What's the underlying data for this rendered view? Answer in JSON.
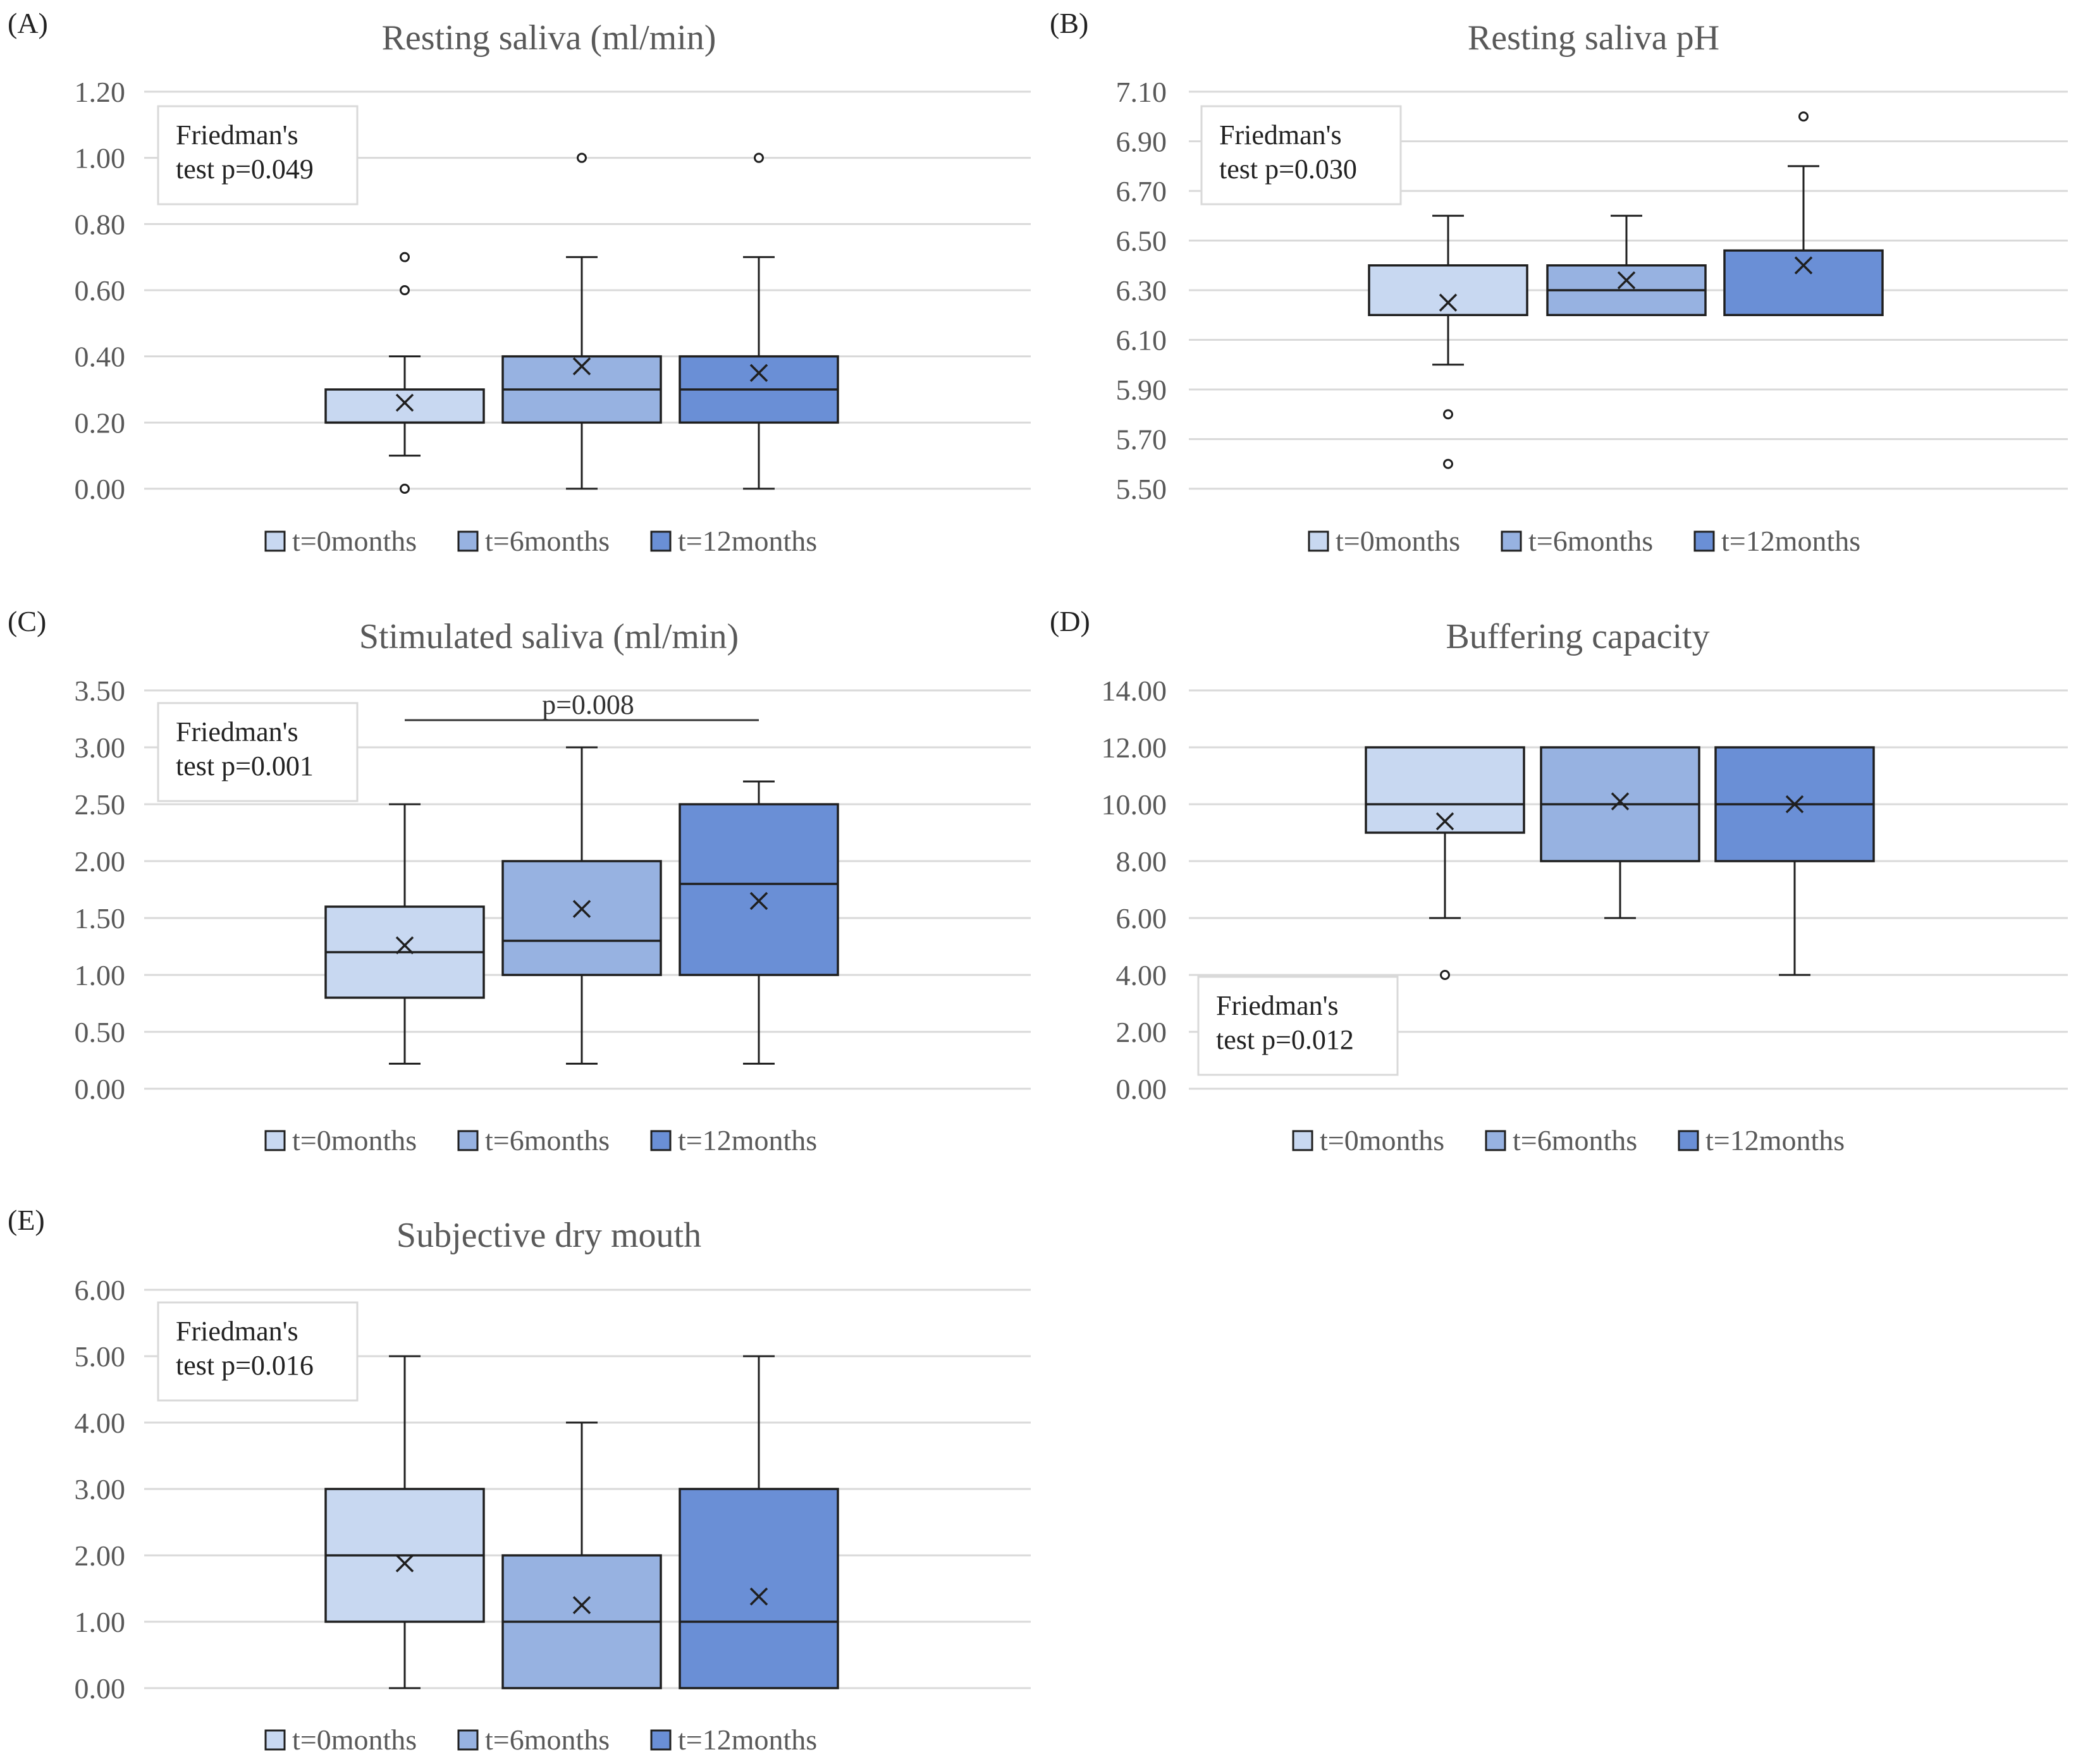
{
  "series_colors": [
    "#c8d8f1",
    "#97b2e1",
    "#6a8fd6"
  ],
  "chart_data": [
    {
      "panel": "(A)",
      "type": "box",
      "title": "Resting saliva (ml/min)",
      "ylim": [
        0,
        1.2
      ],
      "yticks": [
        "0.00",
        "0.20",
        "0.40",
        "0.60",
        "0.80",
        "1.00",
        "1.20"
      ],
      "annotation": [
        "Friedman's",
        "test p=0.049"
      ],
      "annotation_position": "top-left",
      "legend": [
        "t=0months",
        "t=6months",
        "t=12months"
      ],
      "series": [
        {
          "name": "t=0months",
          "min": 0.1,
          "q1": 0.2,
          "median": 0.2,
          "q3": 0.3,
          "max": 0.4,
          "mean": 0.26,
          "outliers": [
            0.0,
            0.6,
            0.7
          ]
        },
        {
          "name": "t=6months",
          "min": 0.0,
          "q1": 0.2,
          "median": 0.3,
          "q3": 0.4,
          "max": 0.7,
          "mean": 0.37,
          "outliers": [
            1.0
          ]
        },
        {
          "name": "t=12months",
          "min": 0.0,
          "q1": 0.2,
          "median": 0.3,
          "q3": 0.4,
          "max": 0.7,
          "mean": 0.35,
          "outliers": [
            1.0
          ]
        }
      ]
    },
    {
      "panel": "(B)",
      "type": "box",
      "title": "Resting saliva pH",
      "ylim": [
        5.5,
        7.1
      ],
      "yticks": [
        "5.50",
        "5.70",
        "5.90",
        "6.10",
        "6.30",
        "6.50",
        "6.70",
        "6.90",
        "7.10"
      ],
      "annotation": [
        "Friedman's",
        "test p=0.030"
      ],
      "annotation_position": "top-left",
      "legend": [
        "t=0months",
        "t=6months",
        "t=12months"
      ],
      "series": [
        {
          "name": "t=0months",
          "min": 6.0,
          "q1": 6.2,
          "median": 6.2,
          "q3": 6.4,
          "max": 6.6,
          "mean": 6.25,
          "outliers": [
            5.6,
            5.8
          ]
        },
        {
          "name": "t=6months",
          "min": 6.2,
          "q1": 6.2,
          "median": 6.3,
          "q3": 6.4,
          "max": 6.6,
          "mean": 6.34,
          "outliers": []
        },
        {
          "name": "t=12months",
          "min": 6.2,
          "q1": 6.2,
          "median": 6.2,
          "q3": 6.46,
          "max": 6.8,
          "mean": 6.4,
          "outliers": [
            7.0
          ]
        }
      ]
    },
    {
      "panel": "(C)",
      "type": "box",
      "title": "Stimulated saliva (ml/min)",
      "ylim": [
        0,
        3.5
      ],
      "yticks": [
        "0.00",
        "0.50",
        "1.00",
        "1.50",
        "2.00",
        "2.50",
        "3.00",
        "3.50"
      ],
      "annotation": [
        "Friedman's",
        "test p=0.001"
      ],
      "annotation_position": "top-left",
      "significance": {
        "label": "p=0.008",
        "from": 0,
        "to": 2,
        "y": 3.25
      },
      "legend": [
        "t=0months",
        "t=6months",
        "t=12months"
      ],
      "series": [
        {
          "name": "t=0months",
          "min": 0.22,
          "q1": 0.8,
          "median": 1.2,
          "q3": 1.6,
          "max": 2.5,
          "mean": 1.26,
          "outliers": []
        },
        {
          "name": "t=6months",
          "min": 0.22,
          "q1": 1.0,
          "median": 1.3,
          "q3": 2.0,
          "max": 3.0,
          "mean": 1.58,
          "outliers": []
        },
        {
          "name": "t=12months",
          "min": 0.22,
          "q1": 1.0,
          "median": 1.8,
          "q3": 2.5,
          "max": 2.7,
          "mean": 1.65,
          "outliers": []
        }
      ]
    },
    {
      "panel": "(D)",
      "type": "box",
      "title": "Buffering capacity",
      "ylim": [
        0,
        14
      ],
      "yticks": [
        "0.00",
        "2.00",
        "4.00",
        "6.00",
        "8.00",
        "10.00",
        "12.00",
        "14.00"
      ],
      "annotation": [
        "Friedman's",
        "test p=0.012"
      ],
      "annotation_position": "bottom-left",
      "legend": [
        "t=0months",
        "t=6months",
        "t=12months"
      ],
      "series": [
        {
          "name": "t=0months",
          "min": 6.0,
          "q1": 9.0,
          "median": 10.0,
          "q3": 12.0,
          "max": 12.0,
          "mean": 9.4,
          "outliers": [
            4.0
          ]
        },
        {
          "name": "t=6months",
          "min": 6.0,
          "q1": 8.0,
          "median": 10.0,
          "q3": 12.0,
          "max": 12.0,
          "mean": 10.1,
          "outliers": []
        },
        {
          "name": "t=12months",
          "min": 4.0,
          "q1": 8.0,
          "median": 10.0,
          "q3": 12.0,
          "max": 12.0,
          "mean": 10.0,
          "outliers": []
        }
      ]
    },
    {
      "panel": "(E)",
      "type": "box",
      "title": "Subjective dry mouth",
      "ylim": [
        0,
        6
      ],
      "yticks": [
        "0.00",
        "1.00",
        "2.00",
        "3.00",
        "4.00",
        "5.00",
        "6.00"
      ],
      "annotation": [
        "Friedman's",
        "test p=0.016"
      ],
      "annotation_position": "top-left",
      "legend": [
        "t=0months",
        "t=6months",
        "t=12months"
      ],
      "series": [
        {
          "name": "t=0months",
          "min": 0.0,
          "q1": 1.0,
          "median": 2.0,
          "q3": 3.0,
          "max": 5.0,
          "mean": 1.88,
          "outliers": []
        },
        {
          "name": "t=6months",
          "min": 0.0,
          "q1": 0.0,
          "median": 1.0,
          "q3": 2.0,
          "max": 4.0,
          "mean": 1.25,
          "outliers": []
        },
        {
          "name": "t=12months",
          "min": 0.0,
          "q1": 0.0,
          "median": 1.0,
          "q3": 3.0,
          "max": 5.0,
          "mean": 1.38,
          "outliers": []
        }
      ]
    }
  ]
}
